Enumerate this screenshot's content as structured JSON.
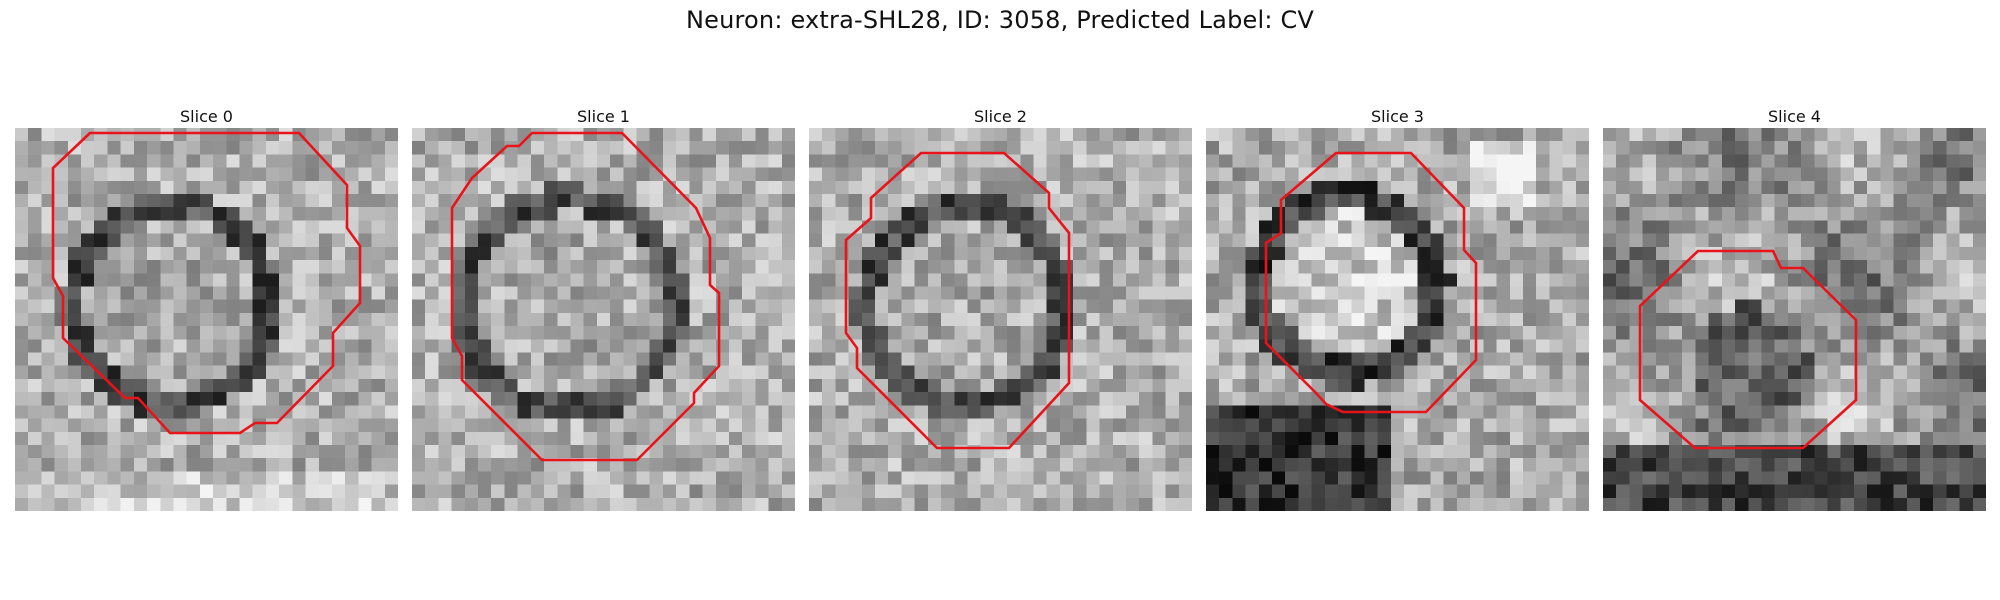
{
  "figure": {
    "title": "Neuron: extra-SHL28, ID: 3058, Predicted Label: CV",
    "outline_color": "#e8141a"
  },
  "panels": [
    {
      "title": "Slice 0"
    },
    {
      "title": "Slice 1"
    },
    {
      "title": "Slice 2"
    },
    {
      "title": "Slice 3"
    },
    {
      "title": "Slice 4"
    }
  ]
}
